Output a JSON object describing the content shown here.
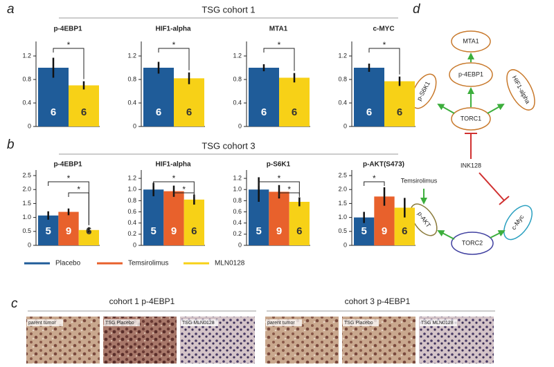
{
  "panels": [
    {
      "label": "a",
      "title": "TSG cohort 1"
    },
    {
      "label": "b",
      "title": "TSG cohort 3"
    },
    {
      "label": "c"
    },
    {
      "label": "d"
    }
  ],
  "chart_data": [
    {
      "type": "bar",
      "title": "p-4EBP1",
      "values": [
        1.0,
        0.7
      ],
      "errors": [
        0.17,
        0.07
      ],
      "n": [
        6,
        6
      ],
      "colors": [
        "#1f5c99",
        "#f7d117"
      ],
      "ylim": [
        0,
        1.4
      ],
      "yticks": [
        0,
        0.4,
        0.8,
        1.2
      ],
      "significance": [
        {
          "bars": [
            0,
            1
          ],
          "label": "*"
        }
      ]
    },
    {
      "type": "bar",
      "title": "HIF1-alpha",
      "values": [
        1.0,
        0.82
      ],
      "errors": [
        0.1,
        0.1
      ],
      "n": [
        6,
        6
      ],
      "colors": [
        "#1f5c99",
        "#f7d117"
      ],
      "ylim": [
        0,
        1.4
      ],
      "yticks": [
        0,
        0.4,
        0.8,
        1.2
      ],
      "significance": [
        {
          "bars": [
            0,
            1
          ],
          "label": "*"
        }
      ]
    },
    {
      "type": "bar",
      "title": "MTA1",
      "values": [
        1.0,
        0.83
      ],
      "errors": [
        0.06,
        0.08
      ],
      "n": [
        6,
        6
      ],
      "colors": [
        "#1f5c99",
        "#f7d117"
      ],
      "ylim": [
        0,
        1.4
      ],
      "yticks": [
        0,
        0.4,
        0.8,
        1.2
      ],
      "significance": [
        {
          "bars": [
            0,
            1
          ],
          "label": "*"
        }
      ]
    },
    {
      "type": "bar",
      "title": "c-MYC",
      "values": [
        1.0,
        0.77
      ],
      "errors": [
        0.07,
        0.08
      ],
      "n": [
        6,
        6
      ],
      "colors": [
        "#1f5c99",
        "#f7d117"
      ],
      "ylim": [
        0,
        1.4
      ],
      "yticks": [
        0,
        0.4,
        0.8,
        1.2
      ],
      "significance": [
        {
          "bars": [
            0,
            1
          ],
          "label": "*"
        }
      ]
    },
    {
      "type": "bar",
      "title": "p-4EBP1",
      "values": [
        1.07,
        1.2,
        0.55
      ],
      "errors": [
        0.15,
        0.12,
        0.1
      ],
      "n": [
        5,
        9,
        6
      ],
      "colors": [
        "#1f5c99",
        "#e8612c",
        "#f7d117"
      ],
      "ylim": [
        0,
        2.6
      ],
      "yticks": [
        0,
        0.5,
        {
          "value": 1,
          "label": "1.0"
        },
        1.5,
        {
          "value": 2,
          "label": "2.0"
        },
        2.5
      ],
      "significance": [
        {
          "bars": [
            0,
            2
          ],
          "label": "*"
        },
        {
          "bars": [
            1,
            2
          ],
          "label": "*"
        }
      ]
    },
    {
      "type": "bar",
      "title": "HIF1-alpha",
      "values": [
        1.0,
        0.97,
        0.82
      ],
      "errors": [
        0.12,
        0.1,
        0.09
      ],
      "n": [
        5,
        9,
        6
      ],
      "colors": [
        "#1f5c99",
        "#e8612c",
        "#f7d117"
      ],
      "ylim": [
        0,
        1.3
      ],
      "yticks": [
        0,
        0.2,
        0.4,
        0.6,
        0.8,
        {
          "value": 1,
          "label": "1.0"
        },
        1.2
      ],
      "significance": [
        {
          "bars": [
            0,
            2
          ],
          "label": "*"
        },
        {
          "bars": [
            1,
            2
          ],
          "label": "*"
        }
      ]
    },
    {
      "type": "bar",
      "title": "p-S6K1",
      "values": [
        1.0,
        0.96,
        0.78
      ],
      "errors": [
        0.22,
        0.12,
        0.08
      ],
      "n": [
        5,
        9,
        6
      ],
      "colors": [
        "#1f5c99",
        "#e8612c",
        "#f7d117"
      ],
      "ylim": [
        0,
        1.3
      ],
      "yticks": [
        0,
        0.2,
        0.4,
        0.6,
        0.8,
        {
          "value": 1,
          "label": "1.0"
        },
        1.2
      ],
      "significance": [
        {
          "bars": [
            0,
            2
          ],
          "label": "*"
        },
        {
          "bars": [
            1,
            2
          ],
          "label": "*"
        }
      ]
    },
    {
      "type": "bar",
      "title": "p-AKT(S473)",
      "values": [
        1.0,
        1.75,
        1.35
      ],
      "errors": [
        0.2,
        0.33,
        0.35
      ],
      "n": [
        5,
        9,
        6
      ],
      "colors": [
        "#1f5c99",
        "#e8612c",
        "#f7d117"
      ],
      "ylim": [
        0,
        2.6
      ],
      "yticks": [
        0,
        0.5,
        {
          "value": 1,
          "label": "1.0"
        },
        1.5,
        {
          "value": 2,
          "label": "2.0"
        },
        2.5
      ],
      "significance": [
        {
          "bars": [
            0,
            1
          ],
          "label": "*"
        }
      ]
    }
  ],
  "legend": [
    {
      "name": "Placebo",
      "color": "#1f5c99"
    },
    {
      "name": "Temsirolimus",
      "color": "#e8612c"
    },
    {
      "name": "MLN0128",
      "color": "#f7d117"
    }
  ],
  "images": [
    {
      "title": "cohort 1 p-4EBP1",
      "panels": [
        "parent tumor",
        "TSG Placebo",
        "TSG MLN0128"
      ]
    },
    {
      "title": "cohort 3 p-4EBP1",
      "panels": [
        "parent tumor",
        "TSG Placebo",
        "TSG MLN0128"
      ]
    }
  ],
  "diagram": {
    "nodes": [
      "MTA1",
      "p-4EBP1",
      "p-S6K1",
      "HIF1-alpha",
      "TORC1",
      "INK128",
      "Temsirolimus",
      "p-AKT",
      "c-Myc",
      "TORC2"
    ]
  }
}
